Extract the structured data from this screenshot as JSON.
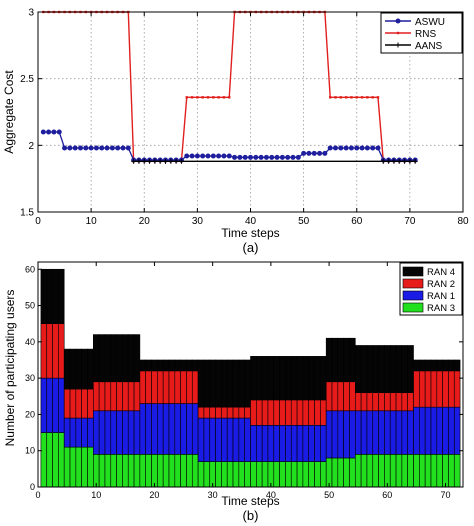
{
  "chart_data": [
    {
      "type": "line",
      "panel_label": "(a)",
      "xlabel": "Time steps",
      "ylabel": "Aggregate Cost",
      "xlim": [
        0,
        80
      ],
      "ylim": [
        1.5,
        3
      ],
      "x_ticks": [
        "0",
        "10",
        "20",
        "30",
        "40",
        "50",
        "60",
        "70",
        "80"
      ],
      "y_ticks": [
        "1.5",
        "2",
        "2.5",
        "3"
      ],
      "grid": true,
      "legend_position": "top-right",
      "colors": {
        "ASWU": "#1f1f9e",
        "RNS": "#e0201f",
        "AANS": "#000000"
      },
      "series": [
        {
          "name": "ASWU",
          "steps": [
            [
              1,
              4,
              2.1
            ],
            [
              5,
              17,
              1.98
            ],
            [
              18,
              27,
              1.89
            ],
            [
              28,
              36,
              1.92
            ],
            [
              37,
              49,
              1.91
            ],
            [
              50,
              54,
              1.94
            ],
            [
              55,
              64,
              1.98
            ],
            [
              65,
              71,
              1.89
            ]
          ]
        },
        {
          "name": "RNS",
          "steps": [
            [
              1,
              17,
              3.0
            ],
            [
              18,
              27,
              1.88
            ],
            [
              28,
              36,
              2.36
            ],
            [
              37,
              54,
              3.0
            ],
            [
              55,
              64,
              2.36
            ],
            [
              65,
              71,
              1.88
            ]
          ]
        },
        {
          "name": "AANS",
          "steps": [
            [
              18,
              27,
              1.88
            ],
            [
              65,
              71,
              1.88
            ]
          ]
        }
      ]
    },
    {
      "type": "bar",
      "stacked": true,
      "panel_label": "(b)",
      "xlabel": "Time steps",
      "ylabel": "Number of participating users",
      "xlim": [
        0,
        73
      ],
      "ylim": [
        0,
        62
      ],
      "x_ticks": [
        "0",
        "10",
        "20",
        "30",
        "40",
        "50",
        "60",
        "70"
      ],
      "y_ticks": [
        "0",
        "10",
        "20",
        "30",
        "40",
        "50",
        "60"
      ],
      "legend_position": "top-right",
      "legend_order": [
        "RAN 4",
        "RAN 2",
        "RAN 1",
        "RAN 3"
      ],
      "stack_order": [
        "RAN 3",
        "RAN 1",
        "RAN 2",
        "RAN 4"
      ],
      "colors": {
        "RAN 3": "#22e01e",
        "RAN 1": "#1b1be6",
        "RAN 2": "#e81b1b",
        "RAN 4": "#050505"
      },
      "segments": [
        {
          "from": 1,
          "to": 4,
          "RAN 3": 15,
          "RAN 1": 15,
          "RAN 2": 15,
          "RAN 4": 15
        },
        {
          "from": 5,
          "to": 9,
          "RAN 3": 11,
          "RAN 1": 8,
          "RAN 2": 8,
          "RAN 4": 11
        },
        {
          "from": 10,
          "to": 17,
          "RAN 3": 9,
          "RAN 1": 12,
          "RAN 2": 8,
          "RAN 4": 13
        },
        {
          "from": 18,
          "to": 27,
          "RAN 3": 9,
          "RAN 1": 14,
          "RAN 2": 9,
          "RAN 4": 3
        },
        {
          "from": 28,
          "to": 36,
          "RAN 3": 7,
          "RAN 1": 12,
          "RAN 2": 3,
          "RAN 4": 13
        },
        {
          "from": 37,
          "to": 49,
          "RAN 3": 7,
          "RAN 1": 10,
          "RAN 2": 7,
          "RAN 4": 12
        },
        {
          "from": 50,
          "to": 54,
          "RAN 3": 8,
          "RAN 1": 13,
          "RAN 2": 8,
          "RAN 4": 12
        },
        {
          "from": 55,
          "to": 64,
          "RAN 3": 9,
          "RAN 1": 12,
          "RAN 2": 5,
          "RAN 4": 13
        },
        {
          "from": 65,
          "to": 72,
          "RAN 3": 9,
          "RAN 1": 13,
          "RAN 2": 10,
          "RAN 4": 3
        }
      ]
    }
  ]
}
